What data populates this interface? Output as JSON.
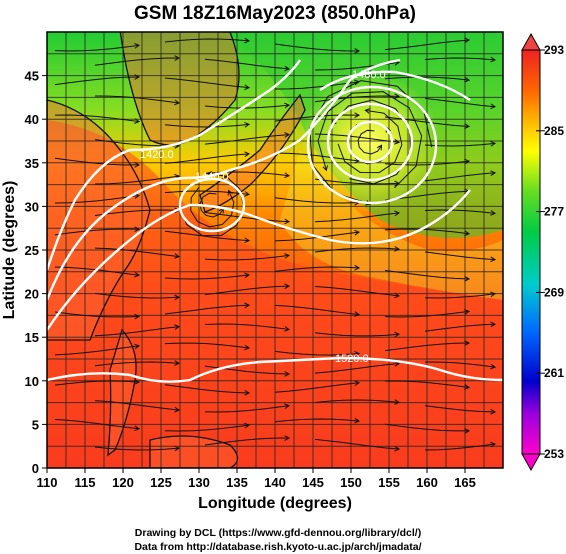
{
  "title": "GSM 18Z16May2023 (850.0hPa)",
  "x_axis": {
    "label": "Longitude (degrees)",
    "ticks": [
      "110",
      "115",
      "120",
      "125",
      "130",
      "135",
      "140",
      "145",
      "150",
      "155",
      "160",
      "165"
    ]
  },
  "y_axis": {
    "label": "Latitude (degrees)",
    "ticks": [
      "0",
      "5",
      "10",
      "15",
      "20",
      "25",
      "30",
      "35",
      "40",
      "45"
    ]
  },
  "colorbar": {
    "ticks": [
      "253",
      "261",
      "269",
      "277",
      "285",
      "293"
    ],
    "colors": [
      "#ff00cc",
      "#7700dd",
      "#0000cc",
      "#0099ff",
      "#00ddcc",
      "#00cc66",
      "#22dd22",
      "#99ee11",
      "#ffff00",
      "#ffbb00",
      "#ff7700",
      "#ff3300",
      "#ee2222"
    ]
  },
  "contour_labels": [
    "1420.0",
    "1440.0",
    "1460.0",
    "1480.0",
    "1520.0"
  ],
  "footer": {
    "line1": "Drawing by DCL (https://www.gfd-dennou.org/library/dcl/)",
    "line2": "Data from http://database.rish.kyoto-u.ac.jp/arch/jmadata/"
  }
}
